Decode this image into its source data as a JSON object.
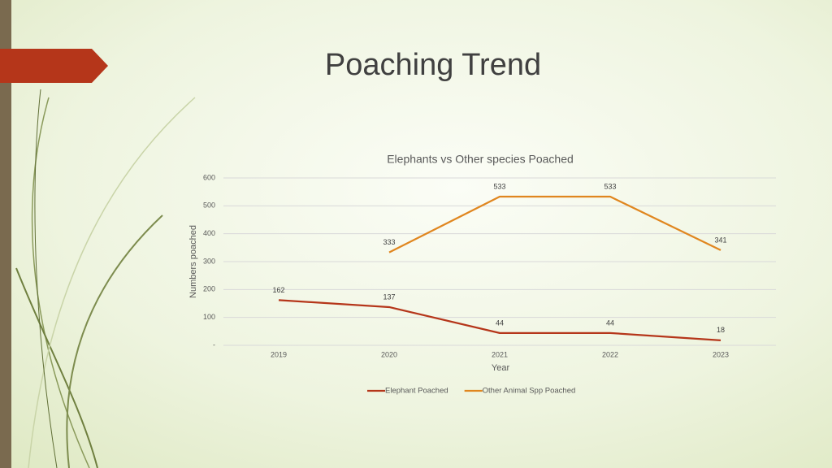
{
  "slide": {
    "title": "Poaching Trend"
  },
  "chart_data": {
    "type": "line",
    "title": "Elephants vs Other species Poached",
    "x_label": "Year",
    "y_label": "Numbers poached",
    "categories": [
      "2019",
      "2020",
      "2021",
      "2022",
      "2023"
    ],
    "series": [
      {
        "name": "Elephant Poached",
        "color": "#b5361a",
        "values": [
          162,
          137,
          44,
          44,
          18
        ]
      },
      {
        "name": "Other Animal Spp Poached",
        "color": "#e0861f",
        "values": [
          null,
          333,
          533,
          533,
          341
        ]
      }
    ],
    "ylim": [
      0,
      600
    ],
    "yticks": [
      {
        "value": 0,
        "label": "-"
      },
      100,
      200,
      300,
      400,
      500,
      600
    ],
    "grid": true,
    "data_labels": true,
    "legend": "bottom"
  }
}
